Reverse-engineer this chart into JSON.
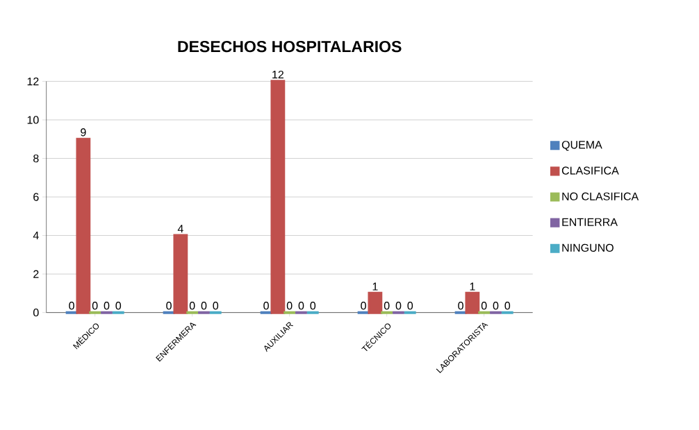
{
  "chart_data": {
    "type": "bar",
    "title": "DESECHOS HOSPITALARIOS",
    "categories": [
      "MÉDICO",
      "ENFERMERA",
      "AUXILIAR",
      "TÉCNICO",
      "LABORATORISTA"
    ],
    "series": [
      {
        "name": "QUEMA",
        "color": "#4f81bd",
        "values": [
          0,
          0,
          0,
          0,
          0
        ]
      },
      {
        "name": "CLASIFICA",
        "color": "#c0504d",
        "values": [
          9,
          4,
          12,
          1,
          1
        ]
      },
      {
        "name": "NO CLASIFICA",
        "color": "#9bbb59",
        "values": [
          0,
          0,
          0,
          0,
          0
        ]
      },
      {
        "name": "ENTIERRA",
        "color": "#8064a2",
        "values": [
          0,
          0,
          0,
          0,
          0
        ]
      },
      {
        "name": "NINGUNO",
        "color": "#4bacc6",
        "values": [
          0,
          0,
          0,
          0,
          0
        ]
      }
    ],
    "ylim": [
      0,
      12
    ],
    "yticks": [
      0,
      2,
      4,
      6,
      8,
      10,
      12
    ],
    "grid": "y",
    "legend": "right",
    "data_labels": true
  }
}
